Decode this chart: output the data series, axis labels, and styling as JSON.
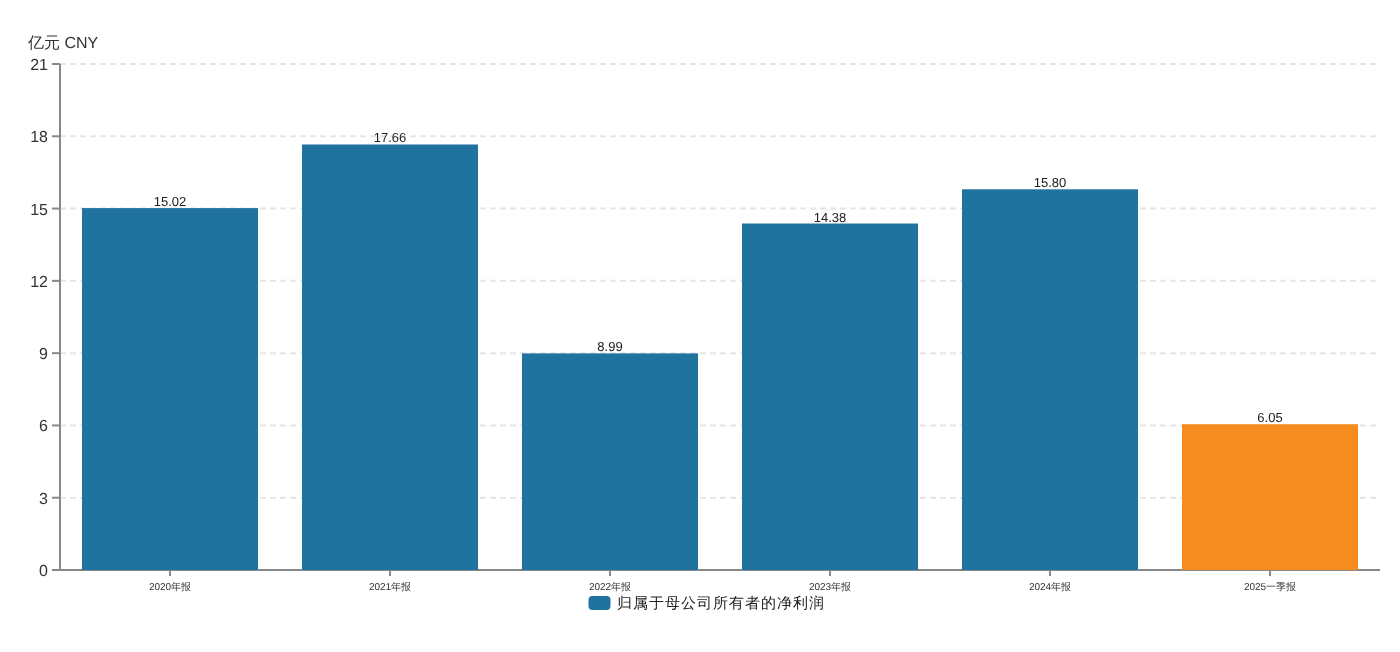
{
  "chart_data": {
    "type": "bar",
    "ylabel": "亿元 CNY",
    "categories": [
      "2020年报",
      "2021年报",
      "2022年报",
      "2023年报",
      "2024年报",
      "2025一季报"
    ],
    "series": [
      {
        "name": "归属于母公司所有者的净利润",
        "color": "#21739f",
        "colors": [
          "#21739f",
          "#21739f",
          "#21739f",
          "#21739f",
          "#21739f",
          "#f68b1f"
        ],
        "values": [
          15.02,
          17.66,
          8.99,
          14.38,
          15.8,
          6.05
        ],
        "value_labels": [
          "15.02",
          "17.66",
          "8.99",
          "14.38",
          "15.80",
          "6.05"
        ]
      }
    ],
    "ylim": [
      0,
      21
    ],
    "yticks": [
      0,
      3,
      6,
      9,
      12,
      15,
      18,
      21
    ],
    "grid": "y",
    "legend": "bottom"
  }
}
